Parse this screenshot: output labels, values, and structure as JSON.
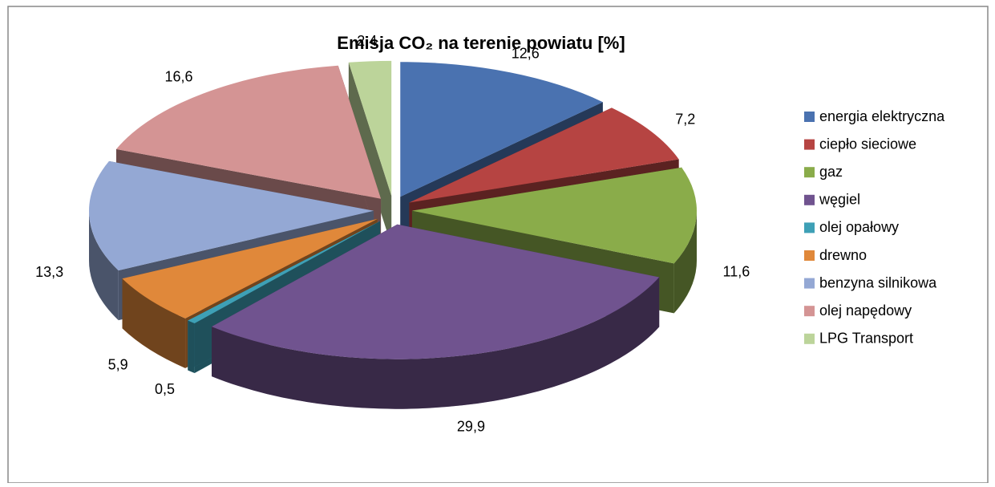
{
  "chart_data": {
    "type": "pie3d",
    "title": "Emisja CO₂ na terenie powiatu [%]",
    "categories": [
      "energia elektryczna",
      "ciepło sieciowe",
      "gaz",
      "węgiel",
      "olej opałowy",
      "drewno",
      "benzyna silnikowa",
      "olej napędowy",
      "LPG Transport"
    ],
    "values": [
      12.6,
      7.2,
      11.6,
      29.9,
      0.5,
      5.9,
      13.3,
      16.6,
      2.4
    ],
    "value_labels": [
      "12,6",
      "7,2",
      "11,6",
      "29,9",
      "0,5",
      "5,9",
      "13,3",
      "16,6",
      "2,4"
    ],
    "colors": [
      "#4a72b0",
      "#b64442",
      "#8aac4a",
      "#70538f",
      "#3ea0b6",
      "#e0883a",
      "#94a8d4",
      "#d49494",
      "#bcd49a"
    ],
    "legend": "right"
  }
}
